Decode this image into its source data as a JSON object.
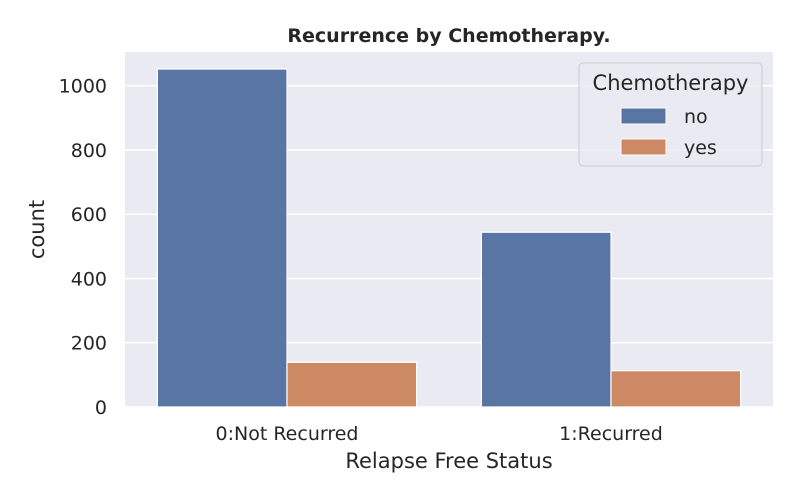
{
  "chart_data": {
    "type": "bar",
    "title": "Recurrence by Chemotherapy.",
    "xlabel": "Relapse Free Status",
    "ylabel": "count",
    "categories": [
      "0:Not Recurred",
      "1:Recurred"
    ],
    "series": [
      {
        "name": "no",
        "values": [
          1052,
          544
        ],
        "color": "#5875a4"
      },
      {
        "name": "yes",
        "values": [
          139,
          113
        ],
        "color": "#cc8963"
      }
    ],
    "ylim": [
      0,
      1105
    ],
    "yticks": [
      0,
      200,
      400,
      600,
      800,
      1000
    ],
    "grid": true,
    "legend": {
      "title": "Chemotherapy",
      "placement": "top-right"
    },
    "background": "#eaeaf2"
  }
}
